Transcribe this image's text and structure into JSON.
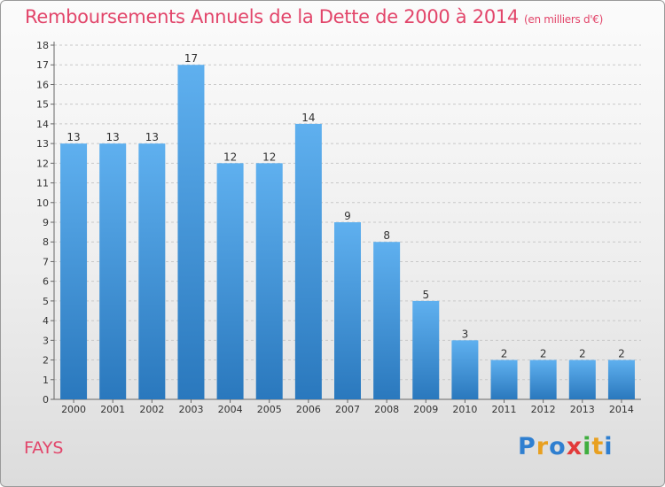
{
  "header": {
    "title": "Remboursements Annuels de la Dette de 2000 à 2014",
    "unit": "(en milliers d'€)"
  },
  "footer": {
    "commune": "FAYS",
    "logo_text": "Proxiti",
    "logo_letters": [
      {
        "ch": "P",
        "color": "#2f7fd0"
      },
      {
        "ch": "r",
        "color": "#e8a020"
      },
      {
        "ch": "o",
        "color": "#2f7fd0"
      },
      {
        "ch": "x",
        "color": "#e23a3a"
      },
      {
        "ch": "i",
        "color": "#3fae3f"
      },
      {
        "ch": "t",
        "color": "#e8a020"
      },
      {
        "ch": "i",
        "color": "#2f7fd0"
      }
    ]
  },
  "chart_data": {
    "type": "bar",
    "title": "Remboursements Annuels de la Dette de 2000 à 2014",
    "subtitle": "(en milliers d'€)",
    "xlabel": "",
    "ylabel": "",
    "categories": [
      "2000",
      "2001",
      "2002",
      "2003",
      "2004",
      "2005",
      "2006",
      "2007",
      "2008",
      "2009",
      "2010",
      "2011",
      "2012",
      "2013",
      "2014"
    ],
    "values": [
      13,
      13,
      13,
      17,
      12,
      12,
      14,
      9,
      8,
      5,
      3,
      2,
      2,
      2,
      2
    ],
    "ylim": [
      0,
      18
    ],
    "yticks": [
      0,
      1,
      2,
      3,
      4,
      5,
      6,
      7,
      8,
      9,
      10,
      11,
      12,
      13,
      14,
      15,
      16,
      17,
      18
    ],
    "grid": true,
    "bar_color_top": "#5fb0ef",
    "bar_color_bottom": "#2a78bd"
  }
}
